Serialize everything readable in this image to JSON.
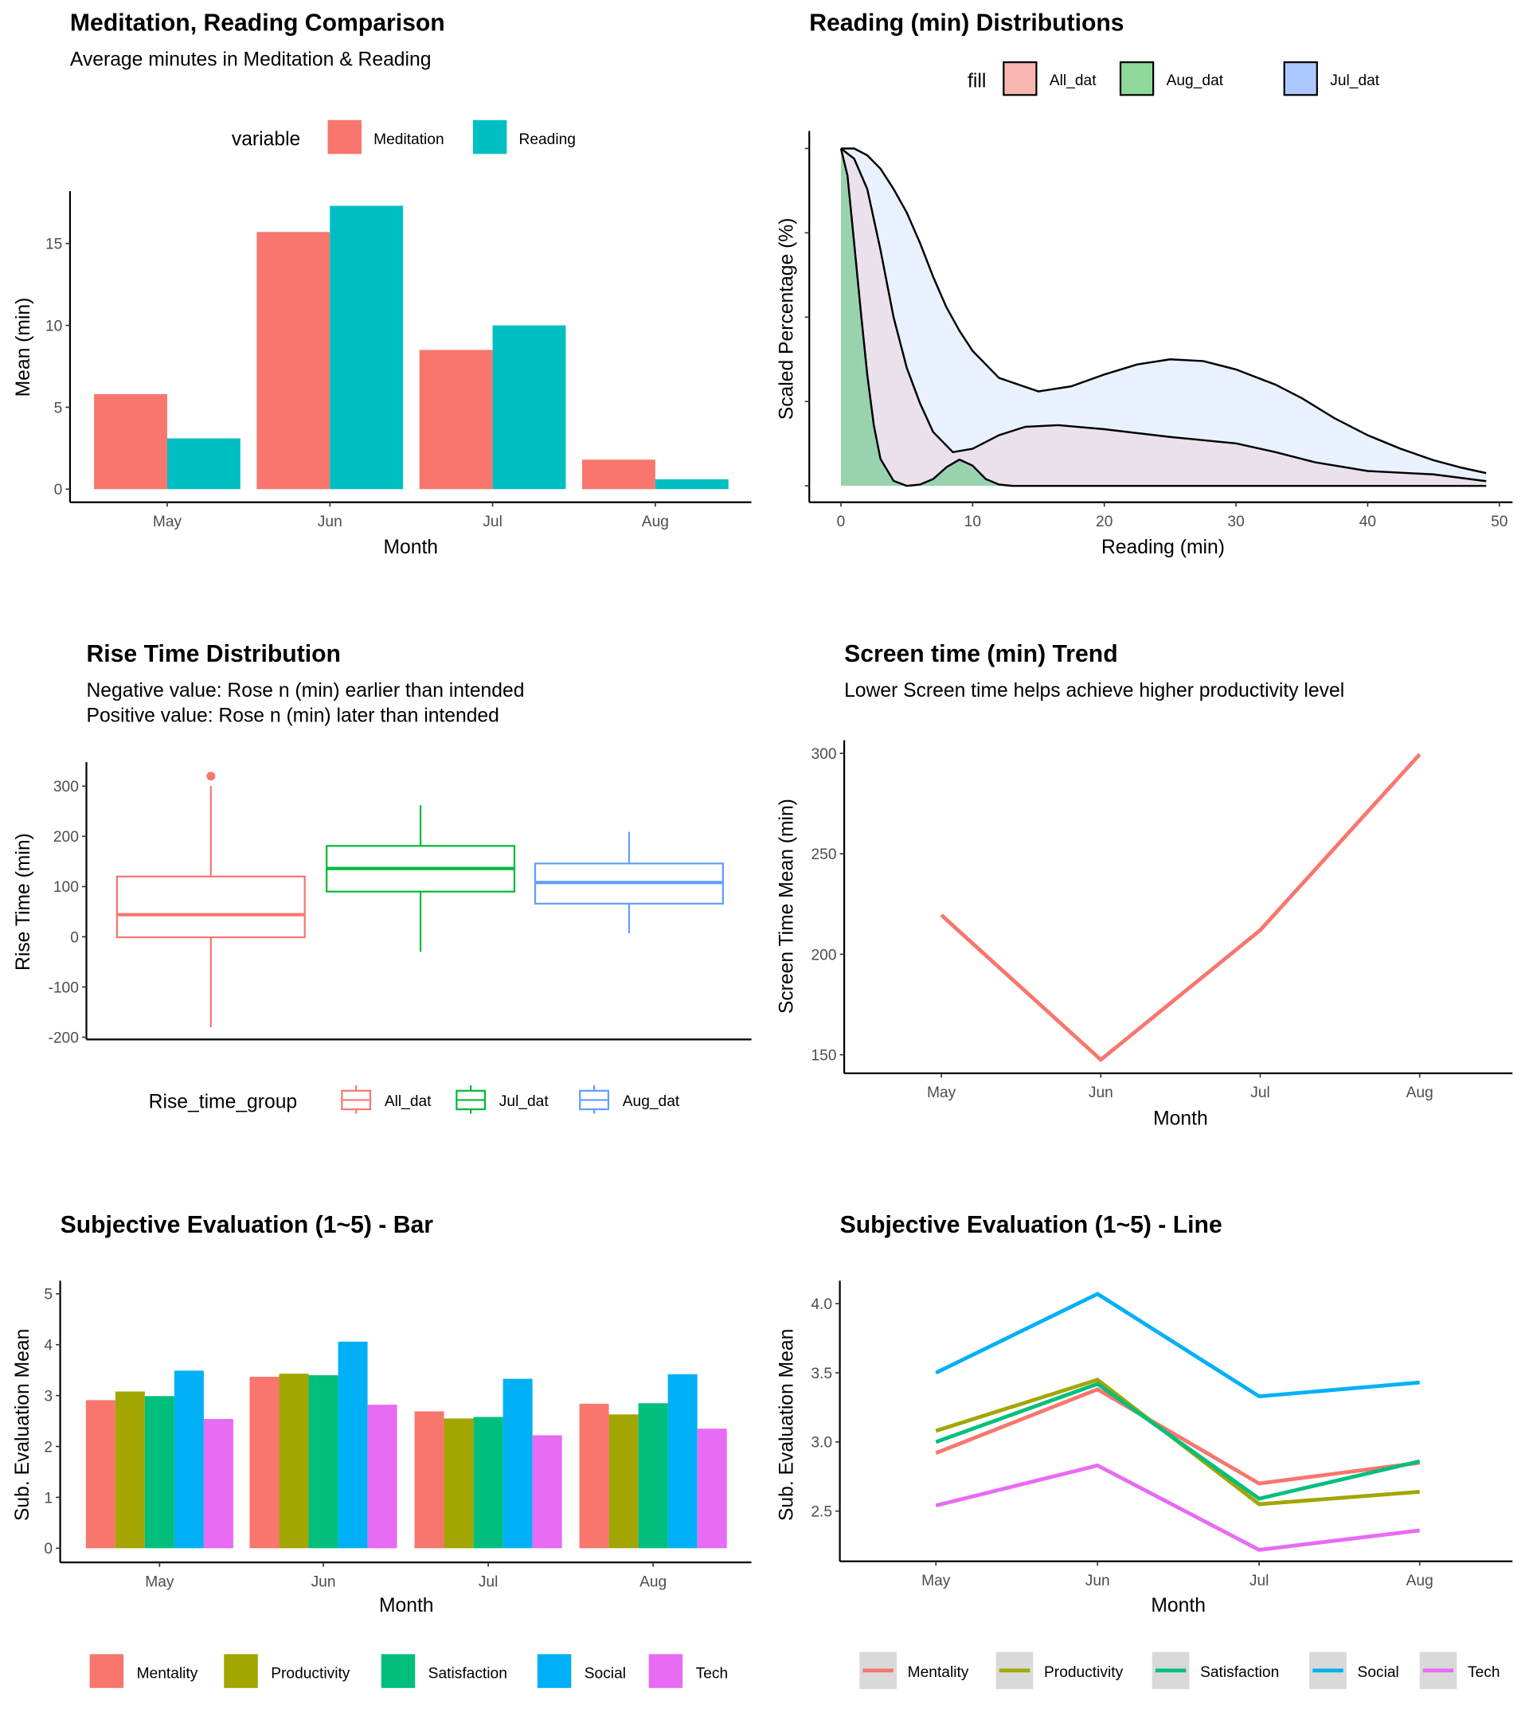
{
  "chart_data": [
    {
      "id": "meditation_reading",
      "type": "bar",
      "title": "Meditation, Reading Comparison",
      "subtitle": "Average minutes in Meditation & Reading",
      "xlabel": "Month",
      "ylabel": "Mean (min)",
      "categories": [
        "May",
        "Jun",
        "Jul",
        "Aug"
      ],
      "yticks": [
        0,
        5,
        10,
        15
      ],
      "legend": {
        "title": "variable",
        "position": "top"
      },
      "series": [
        {
          "name": "Meditation",
          "color": "#F8766D",
          "values": [
            5.8,
            15.7,
            8.5,
            1.8
          ]
        },
        {
          "name": "Reading",
          "color": "#00BFC4",
          "values": [
            3.1,
            17.3,
            10.0,
            0.6
          ]
        }
      ]
    },
    {
      "id": "reading_distributions",
      "type": "area",
      "title": "Reading (min) Distributions",
      "xlabel": "Reading (min)",
      "ylabel": "Scaled Percentage (%)",
      "xticks": [
        0,
        10,
        20,
        30,
        40,
        50
      ],
      "yticks_unlabeled": [
        0,
        0.25,
        0.5,
        0.75,
        1.0
      ],
      "xlim": [
        0,
        50
      ],
      "ylim": [
        0,
        1
      ],
      "legend": {
        "title": "fill",
        "position": "top"
      },
      "series": [
        {
          "name": "All_dat",
          "color": "#F8766D",
          "x": [
            0,
            1,
            2,
            3,
            4,
            5,
            6,
            7,
            8.5,
            10,
            12,
            14,
            16.5,
            20,
            25,
            30,
            33,
            36,
            40,
            45,
            49
          ],
          "y": [
            1.0,
            0.97,
            0.88,
            0.7,
            0.5,
            0.35,
            0.245,
            0.16,
            0.1,
            0.11,
            0.15,
            0.175,
            0.18,
            0.168,
            0.145,
            0.126,
            0.1,
            0.07,
            0.044,
            0.034,
            0.014
          ]
        },
        {
          "name": "Aug_dat",
          "color": "#00BA38",
          "x": [
            0,
            0.5,
            1,
            1.5,
            2,
            2.5,
            3,
            4,
            5,
            6,
            7,
            8,
            9,
            10,
            11,
            12,
            13,
            20,
            30,
            40,
            49
          ],
          "y": [
            1.0,
            0.92,
            0.72,
            0.52,
            0.33,
            0.18,
            0.08,
            0.015,
            0.0,
            0.004,
            0.02,
            0.055,
            0.078,
            0.06,
            0.02,
            0.004,
            0.0,
            0.0,
            0.0,
            0.0,
            0.0
          ]
        },
        {
          "name": "Jul_dat",
          "color": "#619CFF",
          "x": [
            0,
            1,
            2,
            3,
            4,
            5,
            6,
            7,
            8,
            9,
            10,
            12,
            15,
            17.5,
            20,
            22.5,
            25,
            27.5,
            30,
            33,
            35,
            37.5,
            40,
            42.5,
            45,
            47,
            49
          ],
          "y": [
            1.0,
            1.0,
            0.98,
            0.94,
            0.88,
            0.81,
            0.72,
            0.62,
            0.53,
            0.46,
            0.4,
            0.32,
            0.28,
            0.295,
            0.33,
            0.36,
            0.375,
            0.37,
            0.345,
            0.3,
            0.26,
            0.2,
            0.15,
            0.11,
            0.076,
            0.055,
            0.038
          ]
        }
      ]
    },
    {
      "id": "rise_time",
      "type": "boxplot",
      "title": "Rise Time Distribution",
      "subtitle_lines": [
        "Negative value: Rose n (min) earlier than intended",
        "Positive value: Rose n (min) later than intended"
      ],
      "ylabel": "Rise Time (min)",
      "yticks": [
        -200,
        -100,
        0,
        100,
        200,
        300
      ],
      "legend": {
        "title": "Rise_time_group",
        "position": "bottom"
      },
      "groups": [
        {
          "name": "All_dat",
          "color": "#F8766D",
          "min": -180,
          "q1": -1,
          "median": 44,
          "q3": 120,
          "max": 300,
          "outliers": [
            320
          ]
        },
        {
          "name": "Jul_dat",
          "color": "#00BA38",
          "min": -30,
          "q1": 90,
          "median": 136,
          "q3": 181,
          "max": 262,
          "outliers": []
        },
        {
          "name": "Aug_dat",
          "color": "#619CFF",
          "min": 7,
          "q1": 66,
          "median": 108,
          "q3": 146,
          "max": 209,
          "outliers": []
        }
      ]
    },
    {
      "id": "screen_time",
      "type": "line",
      "title": "Screen time (min) Trend",
      "subtitle": "Lower Screen time helps achieve higher productivity level",
      "xlabel": "Month",
      "ylabel": "Screen Time Mean (min)",
      "categories": [
        "May",
        "Jun",
        "Jul",
        "Aug"
      ],
      "yticks": [
        150,
        200,
        250,
        300
      ],
      "series": [
        {
          "name": "Screen time",
          "color": "#F8766D",
          "values": [
            219.5,
            147.5,
            212,
            299.5
          ]
        }
      ]
    },
    {
      "id": "subjective_bar",
      "type": "bar",
      "title": "Subjective Evaluation (1~5) - Bar",
      "xlabel": "Month",
      "ylabel": "Sub. Evaluation Mean",
      "categories": [
        "May",
        "Jun",
        "Jul",
        "Aug"
      ],
      "yticks": [
        0,
        1,
        2,
        3,
        4,
        5
      ],
      "legend": {
        "title": "",
        "position": "bottom"
      },
      "series": [
        {
          "name": "Mentality",
          "color": "#F8766D",
          "values": [
            2.91,
            3.37,
            2.69,
            2.84
          ]
        },
        {
          "name": "Productivity",
          "color": "#A3A500",
          "values": [
            3.08,
            3.43,
            2.55,
            2.63
          ]
        },
        {
          "name": "Satisfaction",
          "color": "#00BF7D",
          "values": [
            2.99,
            3.4,
            2.58,
            2.85
          ]
        },
        {
          "name": "Social",
          "color": "#00B0F6",
          "values": [
            3.49,
            4.06,
            3.33,
            3.42
          ]
        },
        {
          "name": "Tech",
          "color": "#E76BF3",
          "values": [
            2.54,
            2.82,
            2.22,
            2.35
          ]
        }
      ]
    },
    {
      "id": "subjective_line",
      "type": "line",
      "title": "Subjective Evaluation (1~5) - Line",
      "xlabel": "Month",
      "ylabel": "Sub. Evaluation Mean",
      "categories": [
        "May",
        "Jun",
        "Jul",
        "Aug"
      ],
      "yticks": [
        2.5,
        3.0,
        3.5,
        4.0
      ],
      "ytick_labels": [
        "2.5",
        "3.0",
        "3.5",
        "4.0"
      ],
      "legend": {
        "title": "",
        "position": "bottom"
      },
      "series": [
        {
          "name": "Mentality",
          "color": "#F8766D",
          "values": [
            2.92,
            3.38,
            2.7,
            2.85
          ]
        },
        {
          "name": "Productivity",
          "color": "#A3A500",
          "values": [
            3.08,
            3.45,
            2.55,
            2.64
          ]
        },
        {
          "name": "Satisfaction",
          "color": "#00BF7D",
          "values": [
            3.0,
            3.42,
            2.59,
            2.86
          ]
        },
        {
          "name": "Social",
          "color": "#00B0F6",
          "values": [
            3.5,
            4.07,
            3.33,
            3.43
          ]
        },
        {
          "name": "Tech",
          "color": "#E76BF3",
          "values": [
            2.54,
            2.83,
            2.22,
            2.36
          ]
        }
      ]
    }
  ]
}
